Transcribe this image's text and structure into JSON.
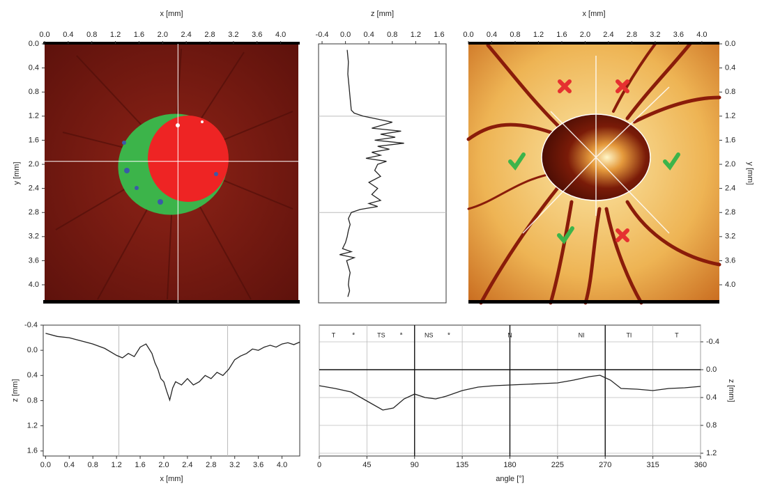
{
  "chart_data": [
    {
      "type": "image",
      "xlabel": "x [mm]",
      "ylabel": "y [mm]",
      "xaxis_side": "top",
      "yaxis_side": "left",
      "xlim": [
        0,
        4.3
      ],
      "ylim": [
        0,
        4.3
      ],
      "y_reversed": true,
      "xticks": [
        {
          "value": 0,
          "label": "0.0"
        },
        0.4,
        0.8,
        1.2,
        1.6,
        {
          "value": 2,
          "label": "2.0"
        },
        2.4,
        2.8,
        3.2,
        3.6,
        {
          "value": 4,
          "label": "4.0"
        }
      ],
      "yticks": [
        {
          "value": 0,
          "label": "0.0"
        },
        0.4,
        0.8,
        1.2,
        1.6,
        {
          "value": 2,
          "label": "2.0"
        },
        2.4,
        2.8,
        3.2,
        3.6,
        {
          "value": 4,
          "label": "4.0"
        }
      ],
      "crosshair": {
        "x": 2.26,
        "y": 1.95
      }
    },
    {
      "type": "line",
      "orientation": "vertical",
      "xlabel": "z [mm]",
      "xaxis_side": "top",
      "xlim": [
        -0.46,
        1.72
      ],
      "ylim": [
        0,
        4.3
      ],
      "y_reversed": true,
      "color": "#222",
      "xticks": [
        -0.4,
        {
          "value": 0,
          "label": "0.0"
        },
        0.4,
        0.8,
        1.2,
        1.6
      ],
      "markers": [
        1.2,
        2.8
      ],
      "positions": [
        0.1,
        0.3,
        0.5,
        0.7,
        0.9,
        1.1,
        1.15,
        1.2,
        1.25,
        1.3,
        1.4,
        1.45,
        1.5,
        1.55,
        1.6,
        1.65,
        1.7,
        1.75,
        1.8,
        1.85,
        1.9,
        1.95,
        2.0,
        2.1,
        2.2,
        2.3,
        2.4,
        2.5,
        2.6,
        2.65,
        2.7,
        2.75,
        2.8,
        2.9,
        3.0,
        3.1,
        3.2,
        3.3,
        3.4,
        3.45,
        3.5,
        3.55,
        3.6,
        3.7,
        3.8,
        3.9,
        4.0,
        4.1,
        4.2
      ],
      "values": [
        0.03,
        0.05,
        0.04,
        0.06,
        0.08,
        0.1,
        0.15,
        0.3,
        0.55,
        0.8,
        0.45,
        0.95,
        0.6,
        0.85,
        0.5,
        1.0,
        0.55,
        0.75,
        0.45,
        0.6,
        0.35,
        0.7,
        0.55,
        0.5,
        0.6,
        0.4,
        0.55,
        0.45,
        0.6,
        0.4,
        0.55,
        0.25,
        0.1,
        0.05,
        0.08,
        0.05,
        0.03,
        0.0,
        -0.05,
        0.1,
        -0.1,
        0.15,
        0.02,
        0.05,
        0.08,
        0.06,
        0.05,
        0.07,
        0.04
      ]
    },
    {
      "type": "image",
      "xlabel": "x [mm]",
      "ylabel": "y [mm]",
      "xaxis_side": "top",
      "yaxis_side": "right",
      "xlim": [
        0,
        4.3
      ],
      "ylim": [
        0,
        4.3
      ],
      "y_reversed": true,
      "xticks": [
        {
          "value": 0,
          "label": "0.0"
        },
        0.4,
        0.8,
        1.2,
        1.6,
        {
          "value": 2,
          "label": "2.0"
        },
        2.4,
        2.8,
        3.2,
        3.6,
        {
          "value": 4,
          "label": "4.0"
        }
      ],
      "yticks": [
        {
          "value": 0,
          "label": "0.0"
        },
        0.4,
        0.8,
        1.2,
        1.6,
        {
          "value": 2,
          "label": "2.0"
        },
        2.4,
        2.8,
        3.2,
        3.6,
        {
          "value": 4,
          "label": "4.0"
        }
      ]
    },
    {
      "type": "line",
      "xlabel": "x [mm]",
      "ylabel": "z [mm]",
      "xaxis_side": "bottom",
      "yaxis_side": "left",
      "xlim": [
        -0.04,
        4.3
      ],
      "ylim": [
        -0.4,
        1.68
      ],
      "y_reversed": true,
      "color": "#222",
      "xticks": [
        {
          "value": 0,
          "label": "0.0"
        },
        0.4,
        0.8,
        1.2,
        1.6,
        {
          "value": 2,
          "label": "2.0"
        },
        2.4,
        2.8,
        3.2,
        3.6,
        {
          "value": 4,
          "label": "4.0"
        }
      ],
      "yticks": [
        -0.4,
        {
          "value": 0,
          "label": "0.0"
        },
        0.4,
        0.8,
        1.2,
        1.6
      ],
      "markers": [
        1.24,
        3.08
      ],
      "x": [
        0,
        0.2,
        0.4,
        0.6,
        0.8,
        1.0,
        1.2,
        1.3,
        1.4,
        1.5,
        1.6,
        1.7,
        1.8,
        1.85,
        1.9,
        1.95,
        2.0,
        2.05,
        2.1,
        2.15,
        2.2,
        2.3,
        2.4,
        2.5,
        2.6,
        2.7,
        2.8,
        2.9,
        3.0,
        3.1,
        3.2,
        3.3,
        3.4,
        3.5,
        3.6,
        3.7,
        3.8,
        3.9,
        4.0,
        4.1,
        4.2,
        4.3
      ],
      "values": [
        -0.27,
        -0.22,
        -0.2,
        -0.15,
        -0.1,
        -0.03,
        0.08,
        0.12,
        0.05,
        0.1,
        -0.05,
        -0.1,
        0.05,
        0.2,
        0.3,
        0.45,
        0.5,
        0.65,
        0.79,
        0.6,
        0.5,
        0.55,
        0.45,
        0.55,
        0.5,
        0.4,
        0.45,
        0.35,
        0.4,
        0.3,
        0.15,
        0.09,
        0.05,
        -0.02,
        0.0,
        -0.05,
        -0.08,
        -0.05,
        -0.1,
        -0.12,
        -0.09,
        -0.13
      ]
    },
    {
      "type": "line",
      "xlabel": "angle [°]",
      "ylabel": "z [mm]",
      "xaxis_side": "bottom",
      "yaxis_side": "right",
      "xlim": [
        0,
        360
      ],
      "ylim": [
        -0.64,
        1.24
      ],
      "y_reversed": true,
      "color": "#222",
      "xticks": [
        0,
        45,
        90,
        135,
        180,
        225,
        270,
        315,
        360
      ],
      "yticks": [
        -0.4,
        {
          "value": 0,
          "label": "0.0"
        },
        0.4,
        0.8,
        1.2
      ],
      "xgrid": true,
      "ygrid": true,
      "strong_x": [
        90,
        180,
        270
      ],
      "strong_y": [
        0
      ],
      "sectors": [
        {
          "label": "T",
          "flag": "*",
          "start": 0,
          "end": 45
        },
        {
          "label": "TS",
          "flag": "*",
          "start": 45,
          "end": 90
        },
        {
          "label": "NS",
          "flag": "*",
          "start": 90,
          "end": 135
        },
        {
          "label": "N",
          "start": 135,
          "end": 225
        },
        {
          "label": "NI",
          "start": 225,
          "end": 270
        },
        {
          "label": "TI",
          "start": 270,
          "end": 315
        },
        {
          "label": "T",
          "start": 315,
          "end": 360
        }
      ],
      "x": [
        0,
        15,
        30,
        45,
        60,
        70,
        80,
        90,
        100,
        110,
        120,
        135,
        150,
        165,
        180,
        195,
        210,
        225,
        240,
        255,
        265,
        275,
        285,
        300,
        315,
        330,
        345,
        360
      ],
      "values": [
        0.23,
        0.27,
        0.32,
        0.45,
        0.58,
        0.55,
        0.42,
        0.35,
        0.4,
        0.42,
        0.38,
        0.3,
        0.25,
        0.23,
        0.22,
        0.21,
        0.2,
        0.19,
        0.15,
        0.1,
        0.08,
        0.15,
        0.27,
        0.28,
        0.3,
        0.27,
        0.26,
        0.24
      ]
    }
  ]
}
